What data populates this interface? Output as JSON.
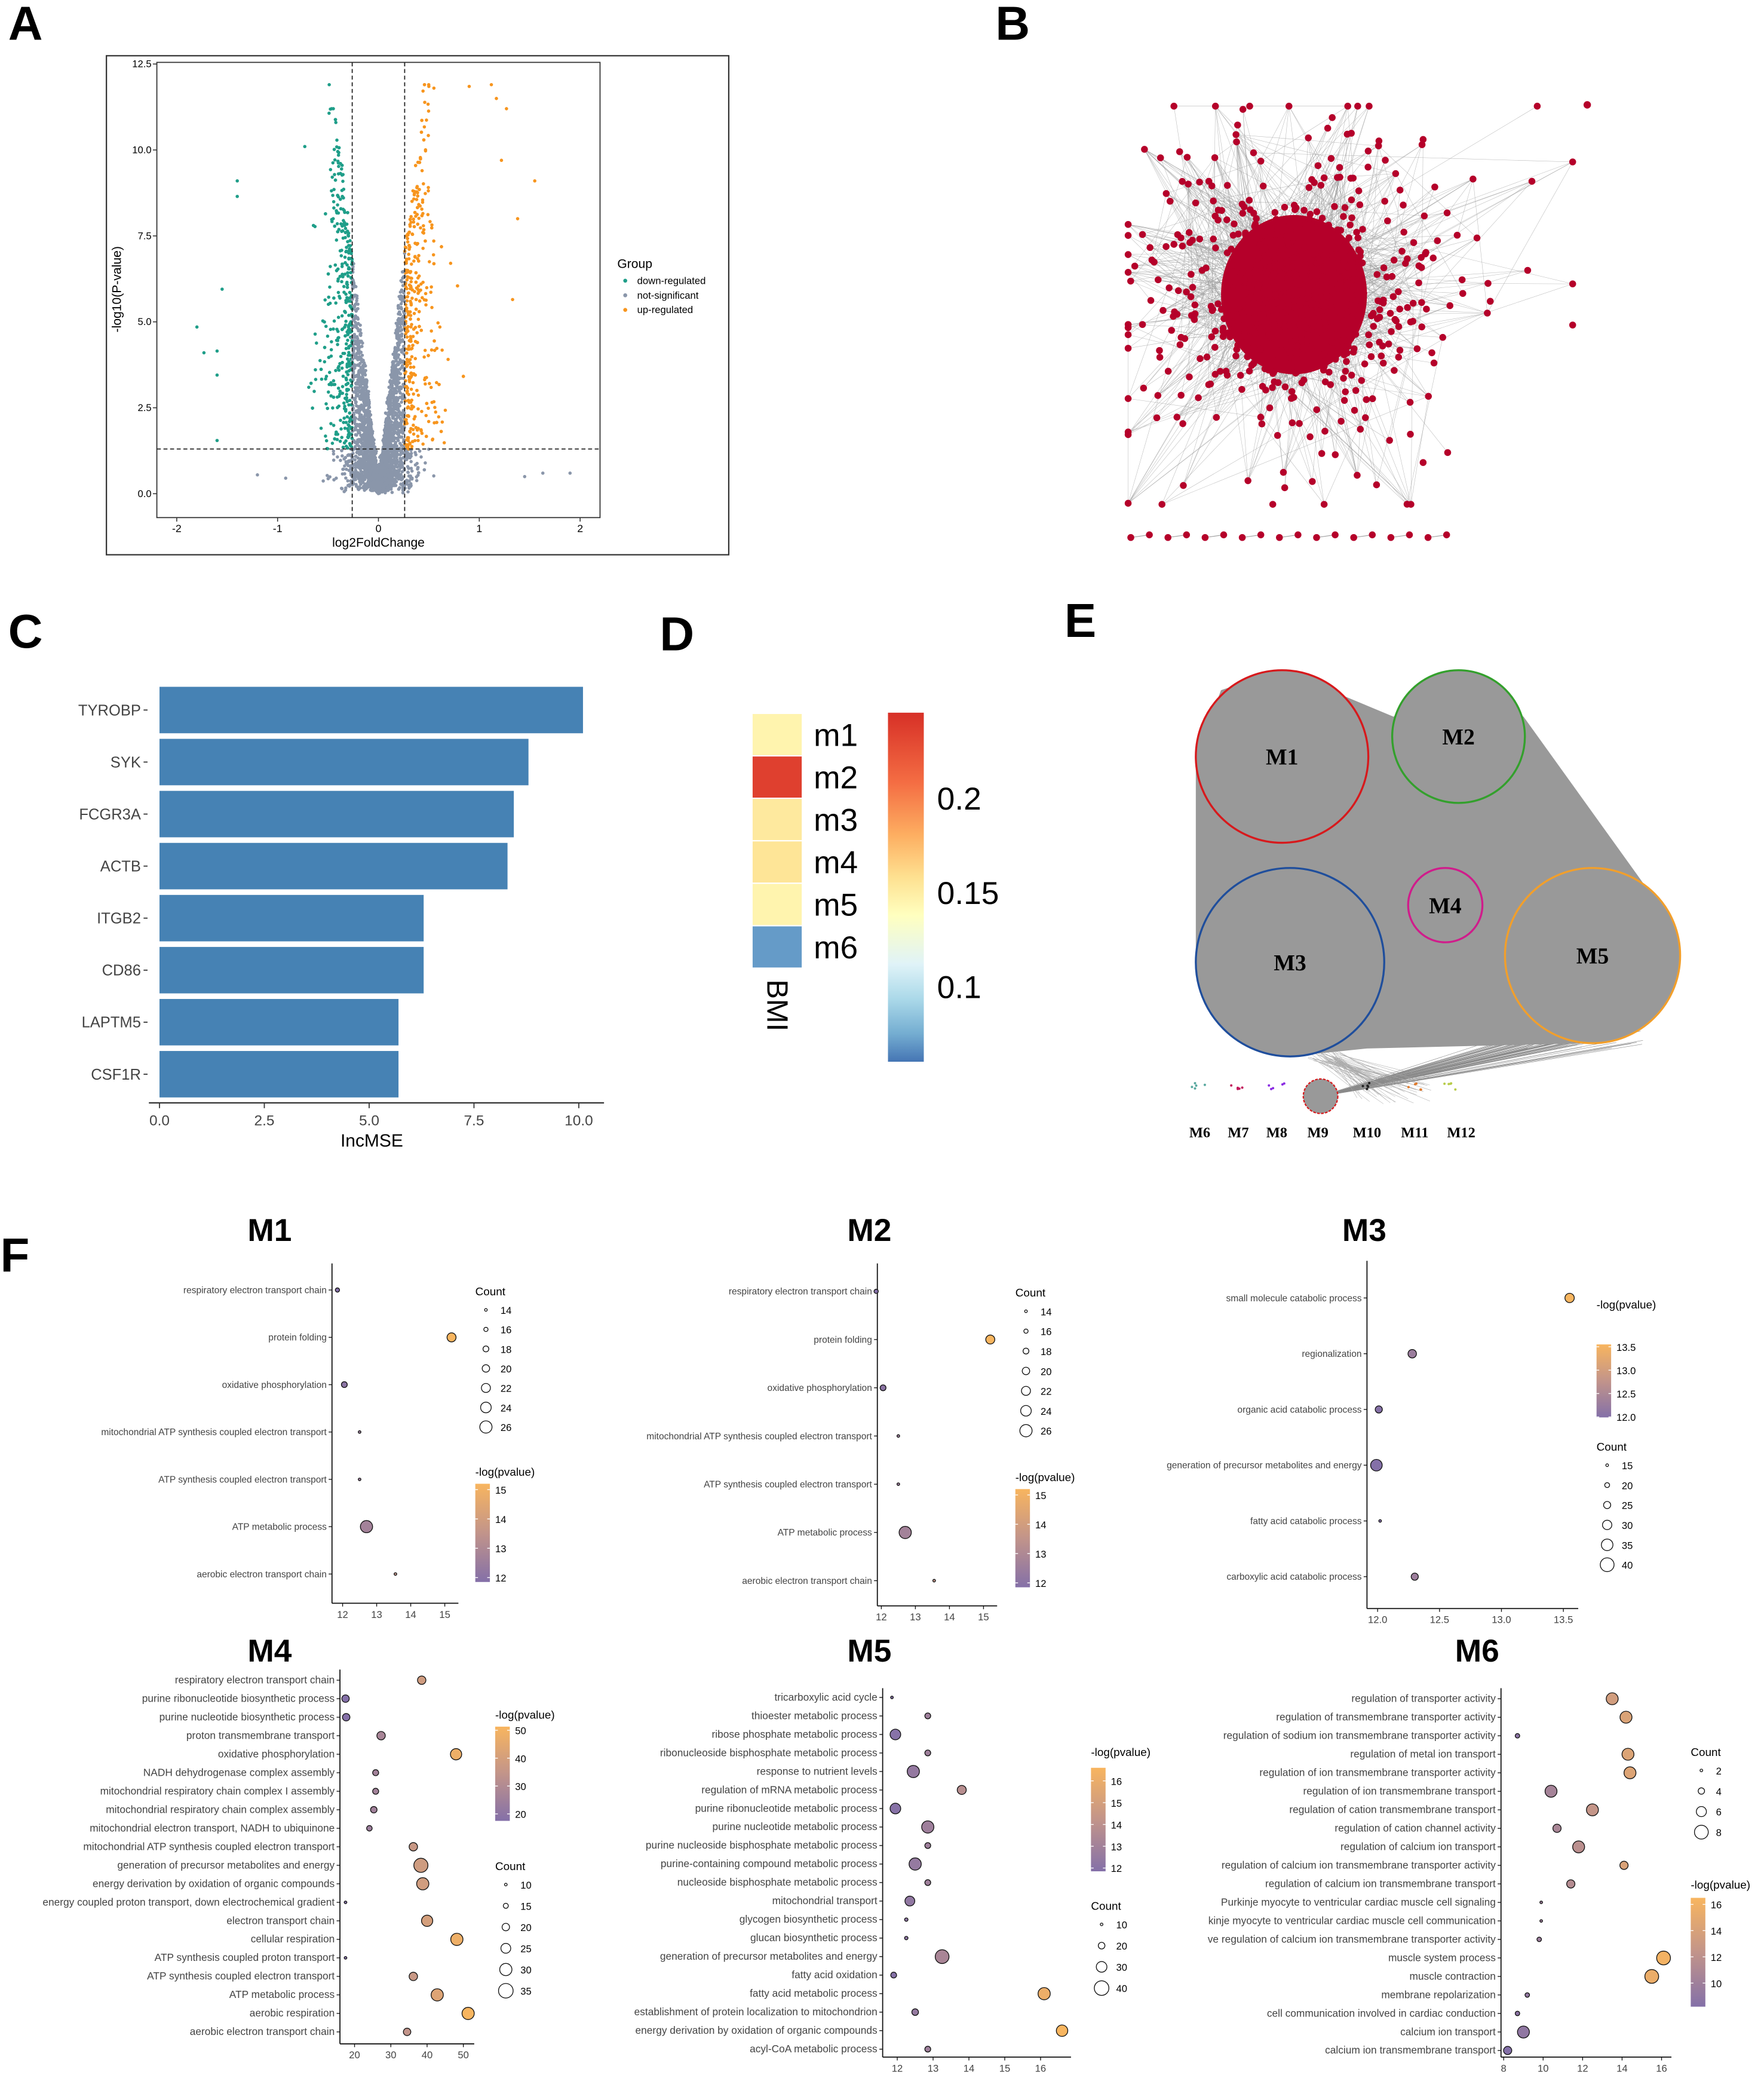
{
  "panels": {
    "A": "A",
    "B": "B",
    "C": "C",
    "D": "D",
    "E": "E",
    "F": "F"
  },
  "chart_data": [
    {
      "type": "scatter",
      "panel": "A",
      "xlabel": "log2FoldChange",
      "ylabel": "-log10(P-value)",
      "xlim": [
        -2.2,
        2.2
      ],
      "ylim": [
        -0.5,
        12.7
      ],
      "xticks": {
        "values": [
          -2,
          -1,
          0,
          1,
          2
        ],
        "labels": [
          "-2",
          "-1",
          "0",
          "1",
          "2"
        ]
      },
      "yticks": {
        "values": [
          0,
          2.5,
          5,
          7.5,
          10,
          12.5
        ],
        "labels": [
          "0.0",
          "2.5",
          "5.0",
          "7.5",
          "10.0",
          "12.5"
        ]
      },
      "legend_title": "Group",
      "legend": [
        "down-regulated",
        "not-significant",
        "up-regulated"
      ],
      "colors": {
        "down-regulated": "#1f9e89",
        "not-significant": "#8a96aa",
        "up-regulated": "#f7951e"
      },
      "thresholds": {
        "log2fc": 0.26,
        "neg_log10_p": 1.3
      },
      "approx_counts": {
        "down-regulated": 700,
        "not-significant": 2600,
        "up-regulated": 950
      },
      "notable_points": [
        [
          -1.8,
          4.85
        ],
        [
          -1.73,
          4.1
        ],
        [
          -1.6,
          4.15
        ],
        [
          -1.6,
          3.45
        ],
        [
          -1.6,
          1.55
        ],
        [
          -1.4,
          9.1
        ],
        [
          -1.4,
          8.65
        ],
        [
          -0.73,
          10.1
        ],
        [
          -1.55,
          5.95
        ],
        [
          0.5,
          11.85
        ],
        [
          0.55,
          11.8
        ],
        [
          0.9,
          11.85
        ],
        [
          1.12,
          11.9
        ],
        [
          1.17,
          11.5
        ],
        [
          1.27,
          11.2
        ],
        [
          1.22,
          9.7
        ],
        [
          1.55,
          9.1
        ],
        [
          1.38,
          8.0
        ],
        [
          1.33,
          5.65
        ],
        [
          1.9,
          0.6
        ],
        [
          1.63,
          0.6
        ],
        [
          1.45,
          0.5
        ],
        [
          -1.2,
          0.55
        ],
        [
          -0.92,
          0.45
        ]
      ]
    },
    {
      "type": "network",
      "panel": "B",
      "node_color": "#b5002a",
      "edge_color": "#9a9a9a",
      "approx_nodes": 700,
      "disconnected_pairs": 9
    },
    {
      "type": "bar",
      "panel": "C",
      "orientation": "horizontal",
      "categories": [
        "TYROBP",
        "SYK",
        "FCGR3A",
        "ACTB",
        "ITGB2",
        "CD86",
        "LAPTM5",
        "CSF1R"
      ],
      "values": [
        10.1,
        8.8,
        8.45,
        8.3,
        6.3,
        6.3,
        5.7,
        5.7
      ],
      "xlabel": "IncMSE",
      "xlim": [
        0,
        10.6
      ],
      "xticks": {
        "values": [
          0,
          2.5,
          5,
          7.5,
          10
        ],
        "labels": [
          "0.0",
          "2.5",
          "5.0",
          "7.5",
          "10.0"
        ]
      },
      "color": "#4682b4"
    },
    {
      "type": "heatmap",
      "panel": "D",
      "rows": [
        "m1",
        "m2",
        "m3",
        "m4",
        "m5",
        "m6"
      ],
      "column": "BMI",
      "values": [
        0.145,
        0.235,
        0.152,
        0.155,
        0.145,
        0.07
      ],
      "range": [
        0.06,
        0.245
      ],
      "colorbar_ticks": {
        "values": [
          0.2,
          0.15,
          0.1
        ],
        "labels": [
          "0.2",
          "0.15",
          "0.1"
        ]
      }
    },
    {
      "type": "network",
      "panel": "E",
      "modules": [
        {
          "name": "M1",
          "color": "#d7191c"
        },
        {
          "name": "M2",
          "color": "#33a02c"
        },
        {
          "name": "M3",
          "color": "#1f4e9c"
        },
        {
          "name": "M4",
          "color": "#d01c8b"
        },
        {
          "name": "M5",
          "color": "#f29f2b"
        },
        {
          "name": "M6",
          "color": "#5aa9a0"
        },
        {
          "name": "M7",
          "color": "#c2185b"
        },
        {
          "name": "M8",
          "color": "#8a2be2"
        },
        {
          "name": "M9",
          "color": "#d7191c"
        },
        {
          "name": "M10",
          "color": "#222222"
        },
        {
          "name": "M11",
          "color": "#e07a2b"
        },
        {
          "name": "M12",
          "color": "#b8cc4a"
        }
      ]
    },
    {
      "type": "scatter",
      "panel": "F",
      "title": "M1",
      "terms": [
        "respiratory electron transport chain",
        "protein folding",
        "oxidative phosphorylation",
        "mitochondrial ATP synthesis coupled electron transport",
        "ATP synthesis coupled electron transport",
        "ATP metabolic process",
        "aerobic electron transport chain"
      ],
      "x": [
        11.85,
        15.2,
        12.05,
        12.5,
        12.5,
        12.7,
        13.55
      ],
      "count": [
        16,
        22,
        18,
        14,
        14,
        26,
        14
      ],
      "xticks": {
        "values": [
          12,
          13,
          14,
          15
        ],
        "labels": [
          "12",
          "13",
          "14",
          "15"
        ]
      },
      "xlim": [
        11.7,
        15.4
      ],
      "count_legend": {
        "title": "Count",
        "values": [
          14,
          16,
          18,
          20,
          22,
          24,
          26
        ],
        "labels": [
          "14",
          "16",
          "18",
          "20",
          "22",
          "24",
          "26"
        ]
      },
      "color_legend": {
        "title": "-log(pvalue)",
        "range": [
          11.85,
          15.2
        ],
        "ticks": [
          15,
          14,
          13,
          12
        ],
        "labels": [
          "15",
          "14",
          "13",
          "12"
        ]
      }
    },
    {
      "type": "scatter",
      "panel": "F",
      "title": "M2",
      "terms": [
        "respiratory electron transport chain",
        "protein folding",
        "oxidative phosphorylation",
        "mitochondrial ATP synthesis coupled electron transport",
        "ATP synthesis coupled electron transport",
        "ATP metabolic process",
        "aerobic electron transport chain"
      ],
      "x": [
        11.85,
        15.2,
        12.05,
        12.5,
        12.5,
        12.7,
        13.55
      ],
      "count": [
        16,
        22,
        18,
        14,
        14,
        26,
        14
      ],
      "xticks": {
        "values": [
          12,
          13,
          14,
          15
        ],
        "labels": [
          "12",
          "13",
          "14",
          "15"
        ]
      },
      "xlim": [
        11.7,
        15.4
      ],
      "count_legend": {
        "title": "Count",
        "values": [
          14,
          16,
          18,
          20,
          22,
          24,
          26
        ],
        "labels": [
          "14",
          "16",
          "18",
          "20",
          "22",
          "24",
          "26"
        ]
      },
      "color_legend": {
        "title": "-log(pvalue)",
        "range": [
          11.85,
          15.2
        ],
        "ticks": [
          15,
          14,
          13,
          12
        ],
        "labels": [
          "15",
          "14",
          "13",
          "12"
        ]
      }
    },
    {
      "type": "scatter",
      "panel": "F",
      "title": "M3",
      "terms": [
        "small molecule catabolic process",
        "regionalization",
        "organic acid catabolic process",
        "generation of precursor metabolites and energy",
        "fatty acid catabolic process",
        "carboxylic acid catabolic process"
      ],
      "x": [
        13.55,
        12.28,
        12.01,
        11.99,
        12.02,
        12.3
      ],
      "count": [
        30,
        28,
        25,
        35,
        14,
        25
      ],
      "xticks": {
        "values": [
          12.0,
          12.5,
          13.0,
          13.5
        ],
        "labels": [
          "12.0",
          "12.5",
          "13.0",
          "13.5"
        ]
      },
      "xlim": [
        11.92,
        13.62
      ],
      "color_legend": {
        "title": "-log(pvalue)",
        "range": [
          11.99,
          13.55
        ],
        "ticks": [
          13.5,
          13.0,
          12.5,
          12.0
        ],
        "labels": [
          "13.5",
          "13.0",
          "12.5",
          "12.0"
        ]
      },
      "count_legend": {
        "title": "Count",
        "values": [
          15,
          20,
          25,
          30,
          35,
          40
        ],
        "labels": [
          "15",
          "20",
          "25",
          "30",
          "35",
          "40"
        ]
      }
    },
    {
      "type": "scatter",
      "panel": "F",
      "title": "M4",
      "terms": [
        "respiratory electron transport chain",
        "purine ribonucleotide biosynthetic process",
        "purine nucleotide biosynthetic process",
        "proton transmembrane transport",
        "oxidative phosphorylation",
        "NADH dehydrogenase complex assembly",
        "mitochondrial respiratory chain complex I assembly",
        "mitochondrial respiratory chain complex assembly",
        "mitochondrial electron transport, NADH to ubiquinone",
        "mitochondrial ATP synthesis coupled electron transport",
        "generation of precursor metabolites and energy",
        "energy derivation by oxidation of organic compounds",
        "energy coupled proton transport, down electrochemical gradient",
        "electron transport chain",
        "cellular respiration",
        "ATP synthesis coupled proton transport",
        "ATP synthesis coupled electron transport",
        "ATP metabolic process",
        "aerobic respiration",
        "aerobic electron transport chain"
      ],
      "x": [
        38.5,
        17.5,
        17.7,
        27.3,
        48,
        25.8,
        25.8,
        25.3,
        24.1,
        36.2,
        38.3,
        38.8,
        17.5,
        40,
        48.2,
        17.5,
        36.2,
        42.8,
        51.3,
        34.5
      ],
      "count": [
        22,
        20,
        20,
        22,
        28,
        17,
        17,
        18,
        16,
        22,
        34,
        30,
        8,
        28,
        30,
        8,
        22,
        30,
        30,
        20
      ],
      "xticks": {
        "values": [
          20,
          30,
          40,
          50
        ],
        "labels": [
          "20",
          "30",
          "40",
          "50"
        ]
      },
      "xlim": [
        15.5,
        53
      ],
      "color_legend": {
        "title": "-log(pvalue)",
        "range": [
          17.5,
          51.3
        ],
        "ticks": [
          50,
          40,
          30,
          20
        ],
        "labels": [
          "50",
          "40",
          "30",
          "20"
        ]
      },
      "count_legend": {
        "title": "Count",
        "values": [
          10,
          15,
          20,
          25,
          30,
          35
        ],
        "labels": [
          "10",
          "15",
          "20",
          "25",
          "30",
          "35"
        ]
      }
    },
    {
      "type": "scatter",
      "panel": "F",
      "title": "M5",
      "terms": [
        "tricarboxylic acid cycle",
        "thioester metabolic process",
        "ribose phosphate metabolic process",
        "ribonucleoside bisphosphate metabolic process",
        "response to nutrient levels",
        "regulation of mRNA metabolic process",
        "purine ribonucleotide metabolic process",
        "purine nucleotide metabolic process",
        "purine nucleoside bisphosphate metabolic process",
        "purine-containing compound metabolic process",
        "nucleoside bisphosphate metabolic process",
        "mitochondrial transport",
        "glycogen biosynthetic process",
        "glucan biosynthetic process",
        "generation of precursor metabolites and energy",
        "fatty acid oxidation",
        "fatty acid metabolic process",
        "establishment of protein localization to mitochondrion",
        "energy derivation by oxidation of organic compounds",
        "acyl-CoA metabolic process"
      ],
      "x": [
        11.85,
        12.85,
        11.95,
        12.85,
        12.45,
        13.8,
        11.95,
        12.85,
        12.85,
        12.5,
        12.85,
        12.35,
        12.25,
        12.25,
        13.25,
        11.9,
        16.1,
        12.5,
        16.6,
        12.85
      ],
      "count": [
        8,
        18,
        30,
        18,
        34,
        26,
        30,
        34,
        18,
        34,
        18,
        28,
        12,
        12,
        38,
        18,
        34,
        20,
        32,
        18
      ],
      "xticks": {
        "values": [
          12,
          13,
          14,
          15,
          16
        ],
        "labels": [
          "12",
          "13",
          "14",
          "15",
          "16"
        ]
      },
      "xlim": [
        11.65,
        16.85
      ],
      "color_legend": {
        "title": "-log(pvalue)",
        "range": [
          11.85,
          16.6
        ],
        "ticks": [
          16,
          15,
          14,
          13,
          12
        ],
        "labels": [
          "16",
          "15",
          "14",
          "13",
          "12"
        ]
      },
      "count_legend": {
        "title": "Count",
        "values": [
          10,
          20,
          30,
          40
        ],
        "labels": [
          "10",
          "20",
          "30",
          "40"
        ]
      }
    },
    {
      "type": "scatter",
      "panel": "F",
      "title": "M6",
      "terms": [
        "regulation of transporter activity",
        "regulation of transmembrane transporter activity",
        "regulation of sodium ion transmembrane transporter activity",
        "regulation of metal ion transport",
        "regulation of ion transmembrane transporter activity",
        "regulation of ion transmembrane transport",
        "regulation of cation transmembrane transport",
        "regulation of cation channel activity",
        "regulation of calcium ion transport",
        "regulation of calcium ion transmembrane transporter activity",
        "regulation of calcium ion transmembrane transport",
        "Purkinje myocyte to ventricular cardiac muscle cell signaling",
        "kinje myocyte to ventricular cardiac muscle cell communication",
        "ve regulation of calcium ion transmembrane transporter activity",
        "muscle system process",
        "muscle contraction",
        "membrane repolarization",
        "cell communication involved in cardiac conduction",
        "calcium ion transport",
        "calcium ion transmembrane transport"
      ],
      "x": [
        13.5,
        14.2,
        8.7,
        14.3,
        14.4,
        10.4,
        12.5,
        10.7,
        11.8,
        14.1,
        11.4,
        9.9,
        9.9,
        9.8,
        16.1,
        15.5,
        9.2,
        8.7,
        9.0,
        8.2
      ],
      "count": [
        7,
        7,
        3,
        7,
        7,
        7,
        7,
        5,
        7,
        5,
        5,
        2,
        2,
        3,
        8,
        8,
        3,
        3,
        7,
        5
      ],
      "xticks": {
        "values": [
          8,
          10,
          12,
          14,
          16
        ],
        "labels": [
          "8",
          "10",
          "12",
          "14",
          "16"
        ]
      },
      "xlim": [
        7.9,
        16.5
      ],
      "count_legend": {
        "title": "Count",
        "values": [
          2,
          4,
          6,
          8
        ],
        "labels": [
          "2",
          "4",
          "6",
          "8"
        ]
      },
      "color_legend": {
        "title": "-log(pvalue)",
        "range": [
          8.2,
          16.5
        ],
        "ticks": [
          16,
          14,
          12,
          10
        ],
        "labels": [
          "16",
          "14",
          "12",
          "10"
        ]
      }
    }
  ]
}
